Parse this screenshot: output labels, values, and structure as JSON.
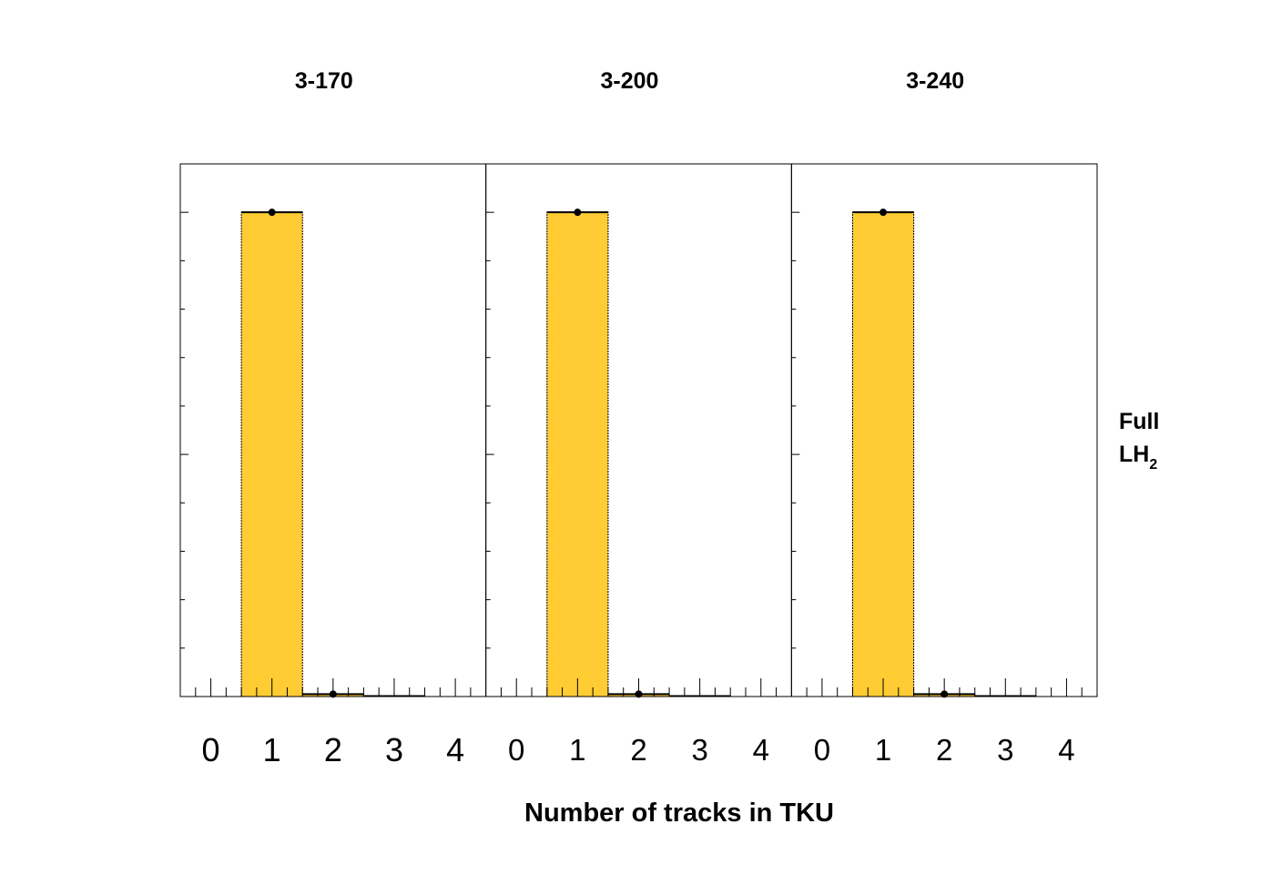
{
  "chart_data": [
    {
      "type": "bar",
      "title": "3-170",
      "categories": [
        "0",
        "1",
        "2",
        "3",
        "4"
      ],
      "values": [
        0,
        1.0,
        0.005,
        0.001,
        0
      ],
      "data_points": [
        {
          "x": 1,
          "y": 1.0
        },
        {
          "x": 2,
          "y": 0.005
        }
      ],
      "xlim": [
        -0.5,
        4.5
      ],
      "ylim": [
        0,
        1.1
      ]
    },
    {
      "type": "bar",
      "title": "3-200",
      "categories": [
        "0",
        "1",
        "2",
        "3",
        "4"
      ],
      "values": [
        0,
        1.0,
        0.005,
        0.001,
        0
      ],
      "data_points": [
        {
          "x": 1,
          "y": 1.0
        },
        {
          "x": 2,
          "y": 0.005
        }
      ],
      "xlim": [
        -0.5,
        4.5
      ],
      "ylim": [
        0,
        1.1
      ]
    },
    {
      "type": "bar",
      "title": "3-240",
      "categories": [
        "0",
        "1",
        "2",
        "3",
        "4"
      ],
      "values": [
        0,
        1.0,
        0.005,
        0.001,
        0
      ],
      "data_points": [
        {
          "x": 1,
          "y": 1.0
        },
        {
          "x": 2,
          "y": 0.005
        }
      ],
      "xlim": [
        -0.5,
        4.5
      ],
      "ylim": [
        0,
        1.1
      ]
    }
  ],
  "xlabel": "Number of tracks in TKU",
  "side_label": {
    "line1": "Full",
    "line2_main": "LH",
    "line2_sub": "2"
  },
  "colors": {
    "bar_fill": "#ffcc33",
    "marker": "#000000",
    "frame": "#000000"
  }
}
